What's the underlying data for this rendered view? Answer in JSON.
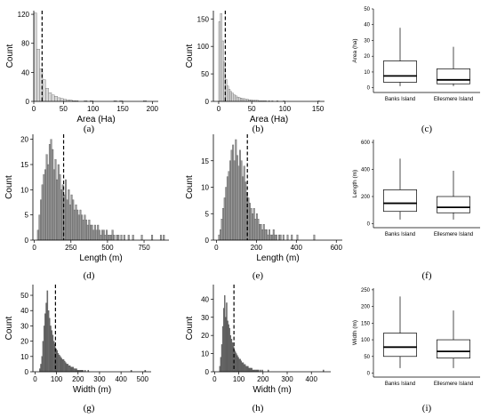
{
  "figure": {
    "panel_labels": [
      "(a)",
      "(b)",
      "(c)",
      "(d)",
      "(e)",
      "(f)",
      "(g)",
      "(h)",
      "(i)"
    ]
  },
  "colors": {
    "bar_fill_light": "#d9d9d9",
    "bar_fill_mid": "#999999",
    "bar_fill_dark": "#6e6e6e",
    "bar_edge": "#444444",
    "box_fill": "#ffffff",
    "line": "#000000"
  },
  "chart_data": [
    {
      "id": "a",
      "type": "bar",
      "subtype": "histogram",
      "xlabel": "Area (Ha)",
      "ylabel": "Count",
      "xlim": [
        0,
        210
      ],
      "ylim": [
        0,
        125
      ],
      "xticks": [
        0,
        50,
        100,
        150,
        200
      ],
      "yticks": [
        0,
        40,
        80,
        120
      ],
      "bin_start": 0,
      "bin_width": 5,
      "counts": [
        122,
        72,
        45,
        30,
        18,
        12,
        9,
        7,
        5,
        4,
        3,
        2,
        2,
        1,
        1,
        0,
        0,
        1,
        0,
        1,
        0,
        0,
        0,
        0,
        0,
        0,
        0,
        1,
        0,
        1,
        0,
        0,
        0,
        0,
        0,
        0,
        0,
        1
      ],
      "vline": 14
    },
    {
      "id": "b",
      "type": "bar",
      "subtype": "histogram",
      "xlabel": "Area (Ha)",
      "ylabel": "Count",
      "xlim": [
        -8,
        160
      ],
      "ylim": [
        0,
        165
      ],
      "xticks": [
        0,
        50,
        100,
        150
      ],
      "yticks": [
        0,
        50,
        100,
        150
      ],
      "bin_start": 0,
      "bin_width": 2.5,
      "counts": [
        145,
        160,
        110,
        72,
        40,
        28,
        22,
        18,
        15,
        12,
        10,
        8,
        7,
        6,
        5,
        5,
        4,
        4,
        3,
        3,
        2,
        2,
        2,
        2,
        1,
        1,
        1,
        1,
        1,
        0,
        1,
        0,
        1,
        0,
        0,
        1,
        0,
        0,
        0,
        1,
        0,
        0,
        0,
        0,
        0,
        0,
        0,
        0,
        0,
        0,
        0,
        0,
        0,
        0,
        0,
        0,
        0,
        0,
        0,
        0,
        1
      ],
      "vline": 10
    },
    {
      "id": "c",
      "type": "box",
      "ylabel": "Area (ha)",
      "ylim": [
        -3,
        50
      ],
      "yticks": [
        0,
        10,
        20,
        30,
        40,
        50
      ],
      "categories": [
        "Banks Island",
        "Ellesmere Island"
      ],
      "boxes": [
        {
          "min": 1,
          "q1": 3.5,
          "median": 7.5,
          "q3": 17,
          "max": 38
        },
        {
          "min": 1,
          "q1": 2.5,
          "median": 5,
          "q3": 12,
          "max": 26
        }
      ]
    },
    {
      "id": "d",
      "type": "bar",
      "subtype": "histogram",
      "xlabel": "Length (m)",
      "ylabel": "Count",
      "xlim": [
        -10,
        920
      ],
      "ylim": [
        0,
        21
      ],
      "xticks": [
        0,
        250,
        500,
        750
      ],
      "yticks": [
        0,
        5,
        10,
        15,
        20
      ],
      "bin_start": 20,
      "bin_width": 10,
      "counts": [
        2,
        5,
        8,
        11,
        13,
        14,
        17,
        15,
        19,
        20,
        18,
        14,
        16,
        12,
        15,
        13,
        10,
        11,
        9,
        12,
        8,
        10,
        7,
        9,
        8,
        6,
        7,
        6,
        5,
        6,
        5,
        4,
        5,
        4,
        3,
        4,
        3,
        3,
        2,
        3,
        2,
        3,
        2,
        1,
        2,
        2,
        1,
        2,
        1,
        1,
        1,
        2,
        1,
        0,
        1,
        1,
        0,
        1,
        0,
        1,
        0,
        0,
        1,
        0,
        0,
        1,
        0,
        0,
        0,
        0,
        0,
        1,
        0,
        0,
        0,
        0,
        0,
        0,
        1,
        0,
        0,
        0,
        0,
        0,
        1,
        0,
        1,
        0,
        0
      ],
      "vline": 200
    },
    {
      "id": "e",
      "type": "bar",
      "subtype": "histogram",
      "xlabel": "Length (m)",
      "ylabel": "Count",
      "xlim": [
        -15,
        630
      ],
      "ylim": [
        0,
        20
      ],
      "xticks": [
        0,
        200,
        400,
        600
      ],
      "yticks": [
        0,
        5,
        10,
        15
      ],
      "bin_start": 10,
      "bin_width": 7,
      "counts": [
        1,
        2,
        4,
        6,
        8,
        10,
        12,
        13,
        15,
        17,
        18,
        15,
        19,
        16,
        14,
        17,
        15,
        12,
        14,
        11,
        9,
        8,
        7,
        6,
        5,
        6,
        4,
        5,
        4,
        3,
        3,
        2,
        3,
        2,
        2,
        1,
        2,
        1,
        1,
        2,
        1,
        1,
        0,
        1,
        1,
        0,
        1,
        0,
        0,
        1,
        0,
        0,
        1,
        0,
        0,
        0,
        1,
        0,
        0,
        0,
        0,
        0,
        0,
        0,
        0,
        0,
        0,
        0,
        1,
        0,
        0,
        0,
        0,
        0,
        0,
        0,
        0,
        0,
        0,
        0,
        0,
        0,
        0,
        0,
        0,
        0,
        0,
        0
      ],
      "vline": 155
    },
    {
      "id": "f",
      "type": "box",
      "ylabel": "Length (m)",
      "ylim": [
        -30,
        620
      ],
      "yticks": [
        0,
        200,
        400,
        600
      ],
      "categories": [
        "Banks Island",
        "Ellesmere Island"
      ],
      "boxes": [
        {
          "min": 30,
          "q1": 90,
          "median": 150,
          "q3": 250,
          "max": 480
        },
        {
          "min": 30,
          "q1": 80,
          "median": 120,
          "q3": 200,
          "max": 390
        }
      ]
    },
    {
      "id": "g",
      "type": "bar",
      "subtype": "histogram",
      "xlabel": "Width (m)",
      "ylabel": "Count",
      "xlim": [
        -10,
        540
      ],
      "ylim": [
        0,
        57
      ],
      "xticks": [
        0,
        100,
        200,
        300,
        400,
        500
      ],
      "yticks": [
        0,
        10,
        20,
        30,
        40,
        50
      ],
      "bin_start": 20,
      "bin_width": 5,
      "counts": [
        2,
        5,
        10,
        20,
        30,
        38,
        45,
        53,
        40,
        35,
        30,
        27,
        24,
        20,
        18,
        15,
        14,
        12,
        11,
        10,
        9,
        8,
        8,
        7,
        6,
        5,
        5,
        4,
        4,
        3,
        3,
        3,
        2,
        2,
        2,
        1,
        1,
        1,
        1,
        1,
        1,
        0,
        1,
        0,
        0,
        1,
        0,
        0,
        0,
        0,
        0,
        0,
        0,
        0,
        0,
        0,
        0,
        0,
        0,
        0,
        0,
        0,
        0,
        0,
        0,
        0,
        0,
        0,
        0,
        0,
        0,
        0,
        0,
        0,
        0,
        0,
        0,
        0,
        0,
        0,
        0,
        0,
        0,
        0,
        0,
        1,
        0,
        0,
        0,
        0,
        0,
        0,
        0,
        0,
        0,
        0,
        0,
        0,
        1
      ],
      "vline": 95
    },
    {
      "id": "h",
      "type": "bar",
      "subtype": "histogram",
      "xlabel": "Width (m)",
      "ylabel": "Count",
      "xlim": [
        -5,
        480
      ],
      "ylim": [
        0,
        48
      ],
      "xticks": [
        0,
        100,
        200,
        300,
        400
      ],
      "yticks": [
        0,
        10,
        20,
        30,
        40
      ],
      "bin_start": 20,
      "bin_width": 4,
      "counts": [
        3,
        8,
        15,
        25,
        35,
        42,
        30,
        38,
        28,
        26,
        24,
        20,
        18,
        16,
        14,
        12,
        11,
        10,
        9,
        8,
        7,
        7,
        6,
        5,
        5,
        4,
        4,
        3,
        3,
        3,
        2,
        2,
        2,
        2,
        1,
        1,
        1,
        1,
        1,
        1,
        1,
        0,
        1,
        0,
        1,
        0,
        0,
        0,
        0,
        0,
        1,
        0,
        0,
        0,
        0,
        0,
        0,
        0,
        0,
        0,
        0,
        0,
        0,
        0,
        0,
        0,
        0,
        0,
        0,
        0,
        0,
        0,
        0,
        0,
        0,
        0,
        0,
        0,
        0,
        0,
        0,
        0,
        0,
        0,
        0,
        0,
        0,
        0,
        0,
        0,
        0,
        0,
        0,
        0,
        0,
        0,
        0,
        0,
        0,
        0,
        0,
        0,
        0,
        0,
        0,
        0,
        0,
        1
      ],
      "vline": 80
    },
    {
      "id": "i",
      "type": "box",
      "ylabel": "Width (m)",
      "ylim": [
        -12,
        255
      ],
      "yticks": [
        0,
        50,
        100,
        150,
        200,
        250
      ],
      "categories": [
        "Banks Island",
        "Ellesmere Island"
      ],
      "boxes": [
        {
          "min": 15,
          "q1": 50,
          "median": 78,
          "q3": 120,
          "max": 230
        },
        {
          "min": 15,
          "q1": 45,
          "median": 65,
          "q3": 100,
          "max": 188
        }
      ]
    }
  ]
}
